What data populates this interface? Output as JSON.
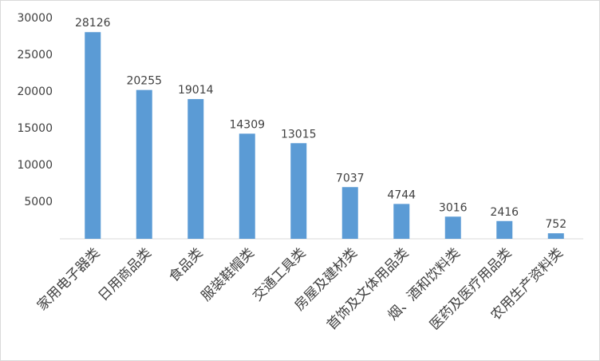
{
  "chart_data": {
    "type": "bar",
    "categories": [
      "家用电子器类",
      "日用商品类",
      "食品类",
      "服装鞋帽类",
      "交通工具类",
      "房屋及建材类",
      "首饰及文体用品类",
      "烟、酒和饮料类",
      "医药及医疗用品类",
      "农用生产资料类"
    ],
    "values": [
      28126,
      20255,
      19014,
      14309,
      13015,
      7037,
      4744,
      3016,
      2416,
      752
    ],
    "color": "#5b9bd5",
    "ylim": [
      0,
      30000
    ],
    "yticks": [
      5000,
      10000,
      15000,
      20000,
      25000,
      30000
    ],
    "grid": false
  }
}
